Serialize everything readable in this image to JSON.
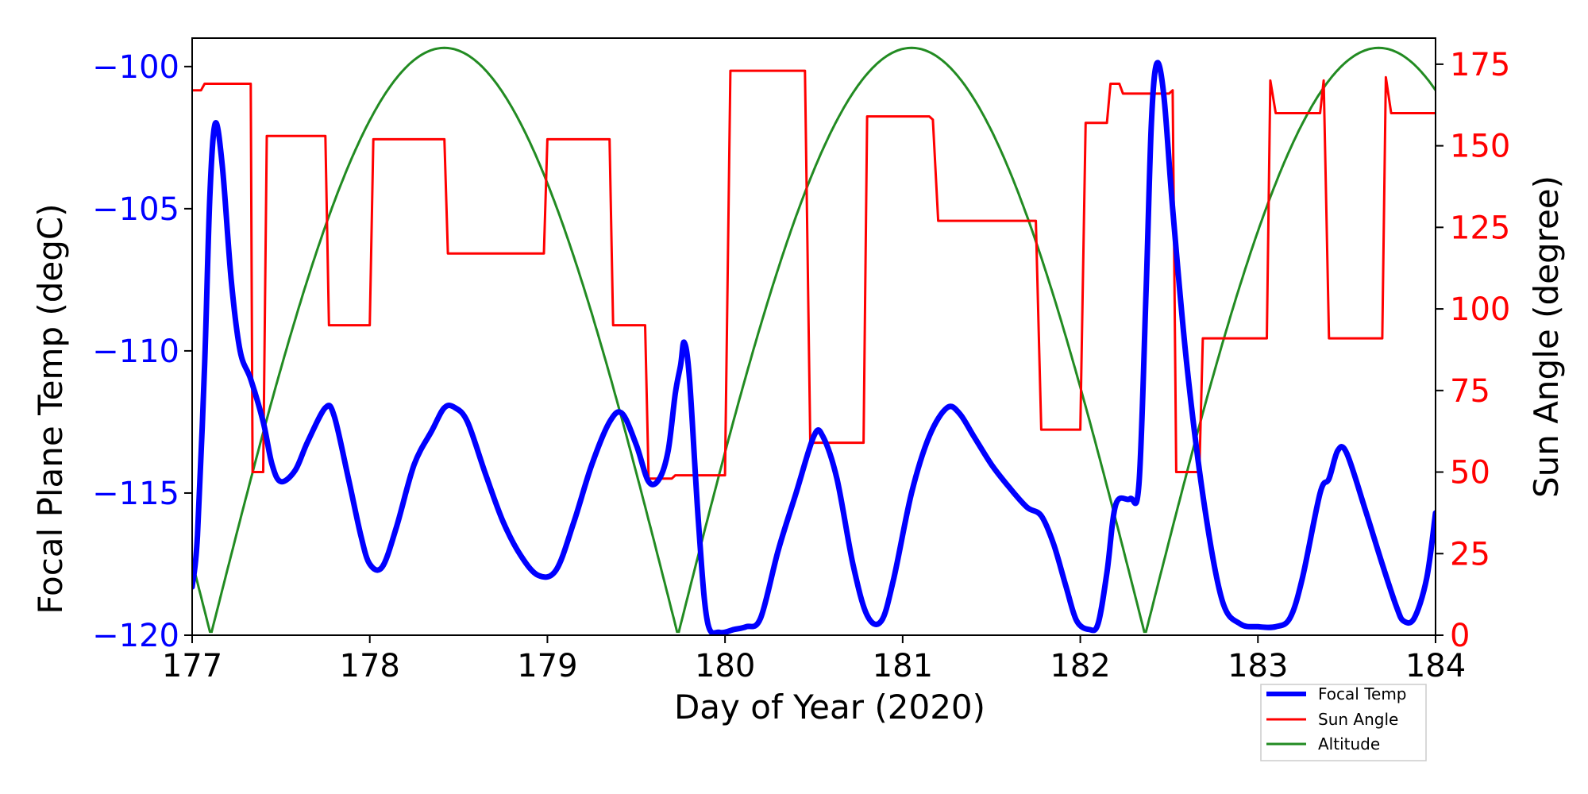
{
  "chart_data": {
    "type": "line",
    "title": "",
    "xlabel": "Day of Year (2020)",
    "ylabel_left": "Focal Plane Temp (degC)",
    "ylabel_right": "Sun Angle (degree)",
    "xlim": [
      177,
      184
    ],
    "ylim_left": [
      -120,
      -99
    ],
    "ylim_right": [
      0,
      183
    ],
    "x_ticks": [
      177,
      178,
      179,
      180,
      181,
      182,
      183,
      184
    ],
    "y_left_ticks": [
      -120,
      -115,
      -110,
      -105,
      -100
    ],
    "y_left_tick_labels": [
      "−120",
      "−115",
      "−110",
      "−105",
      "−100"
    ],
    "y_right_ticks": [
      0,
      25,
      50,
      75,
      100,
      125,
      150,
      175
    ],
    "grid": false,
    "legend_position": "bottom-right",
    "series": [
      {
        "name": "Focal Temp",
        "axis": "left",
        "color": "#0000ff",
        "points": [
          [
            177.0,
            -118.3
          ],
          [
            177.03,
            -116.5
          ],
          [
            177.07,
            -110.5
          ],
          [
            177.1,
            -104.5
          ],
          [
            177.13,
            -102.0
          ],
          [
            177.17,
            -103.5
          ],
          [
            177.22,
            -107.5
          ],
          [
            177.27,
            -110.0
          ],
          [
            177.33,
            -111.0
          ],
          [
            177.4,
            -112.5
          ],
          [
            177.45,
            -114.0
          ],
          [
            177.5,
            -114.6
          ],
          [
            177.58,
            -114.2
          ],
          [
            177.65,
            -113.2
          ],
          [
            177.75,
            -112.0
          ],
          [
            177.8,
            -112.3
          ],
          [
            177.88,
            -114.5
          ],
          [
            177.95,
            -116.5
          ],
          [
            178.0,
            -117.5
          ],
          [
            178.07,
            -117.6
          ],
          [
            178.15,
            -116.2
          ],
          [
            178.25,
            -114.0
          ],
          [
            178.35,
            -112.8
          ],
          [
            178.42,
            -112.0
          ],
          [
            178.48,
            -112.0
          ],
          [
            178.55,
            -112.5
          ],
          [
            178.65,
            -114.3
          ],
          [
            178.75,
            -116.0
          ],
          [
            178.85,
            -117.2
          ],
          [
            178.95,
            -117.9
          ],
          [
            179.05,
            -117.7
          ],
          [
            179.15,
            -116.0
          ],
          [
            179.25,
            -114.0
          ],
          [
            179.35,
            -112.5
          ],
          [
            179.42,
            -112.2
          ],
          [
            179.5,
            -113.3
          ],
          [
            179.57,
            -114.6
          ],
          [
            179.63,
            -114.5
          ],
          [
            179.68,
            -113.5
          ],
          [
            179.72,
            -111.5
          ],
          [
            179.75,
            -110.5
          ],
          [
            179.77,
            -109.7
          ],
          [
            179.8,
            -111.0
          ],
          [
            179.85,
            -116.0
          ],
          [
            179.9,
            -119.5
          ],
          [
            179.97,
            -119.9
          ],
          [
            180.05,
            -119.8
          ],
          [
            180.12,
            -119.7
          ],
          [
            180.2,
            -119.4
          ],
          [
            180.3,
            -117.0
          ],
          [
            180.4,
            -115.0
          ],
          [
            180.5,
            -113.0
          ],
          [
            180.55,
            -113.0
          ],
          [
            180.63,
            -114.5
          ],
          [
            180.72,
            -117.5
          ],
          [
            180.8,
            -119.3
          ],
          [
            180.88,
            -119.5
          ],
          [
            180.95,
            -118.0
          ],
          [
            181.05,
            -115.0
          ],
          [
            181.15,
            -113.0
          ],
          [
            181.25,
            -112.0
          ],
          [
            181.32,
            -112.2
          ],
          [
            181.4,
            -113.0
          ],
          [
            181.5,
            -114.0
          ],
          [
            181.6,
            -114.8
          ],
          [
            181.7,
            -115.5
          ],
          [
            181.78,
            -115.8
          ],
          [
            181.85,
            -116.8
          ],
          [
            181.92,
            -118.3
          ],
          [
            181.98,
            -119.5
          ],
          [
            182.05,
            -119.8
          ],
          [
            182.1,
            -119.6
          ],
          [
            182.15,
            -117.8
          ],
          [
            182.2,
            -115.4
          ],
          [
            182.28,
            -115.2
          ],
          [
            182.33,
            -114.7
          ],
          [
            182.37,
            -108.0
          ],
          [
            182.4,
            -102.0
          ],
          [
            182.43,
            -99.9
          ],
          [
            182.47,
            -101.0
          ],
          [
            182.52,
            -105.0
          ],
          [
            182.6,
            -110.5
          ],
          [
            182.7,
            -115.5
          ],
          [
            182.8,
            -118.8
          ],
          [
            182.9,
            -119.6
          ],
          [
            183.0,
            -119.7
          ],
          [
            183.1,
            -119.7
          ],
          [
            183.18,
            -119.4
          ],
          [
            183.25,
            -118.0
          ],
          [
            183.35,
            -115.0
          ],
          [
            183.4,
            -114.5
          ],
          [
            183.45,
            -113.5
          ],
          [
            183.5,
            -113.6
          ],
          [
            183.6,
            -115.5
          ],
          [
            183.7,
            -117.5
          ],
          [
            183.78,
            -119.0
          ],
          [
            183.82,
            -119.5
          ],
          [
            183.88,
            -119.4
          ],
          [
            183.95,
            -118.0
          ],
          [
            184.0,
            -115.7
          ]
        ]
      },
      {
        "name": "Sun Angle",
        "axis": "right",
        "color": "#ff0000",
        "points": [
          [
            177.0,
            167
          ],
          [
            177.05,
            167
          ],
          [
            177.07,
            169
          ],
          [
            177.33,
            169
          ],
          [
            177.34,
            50
          ],
          [
            177.4,
            50
          ],
          [
            177.42,
            153
          ],
          [
            177.75,
            153
          ],
          [
            177.77,
            95
          ],
          [
            178.0,
            95
          ],
          [
            178.02,
            152
          ],
          [
            178.42,
            152
          ],
          [
            178.44,
            117
          ],
          [
            178.98,
            117
          ],
          [
            179.0,
            152
          ],
          [
            179.35,
            152
          ],
          [
            179.37,
            95
          ],
          [
            179.55,
            95
          ],
          [
            179.57,
            48
          ],
          [
            179.7,
            48
          ],
          [
            179.72,
            49
          ],
          [
            180.0,
            49
          ],
          [
            180.03,
            173
          ],
          [
            180.45,
            173
          ],
          [
            180.48,
            59
          ],
          [
            180.78,
            59
          ],
          [
            180.8,
            159
          ],
          [
            181.15,
            159
          ],
          [
            181.17,
            158
          ],
          [
            181.2,
            127
          ],
          [
            181.75,
            127
          ],
          [
            181.78,
            63
          ],
          [
            182.0,
            63
          ],
          [
            182.03,
            157
          ],
          [
            182.15,
            157
          ],
          [
            182.17,
            169
          ],
          [
            182.22,
            169
          ],
          [
            182.24,
            166
          ],
          [
            182.5,
            166
          ],
          [
            182.52,
            167
          ],
          [
            182.54,
            50
          ],
          [
            182.67,
            50
          ],
          [
            182.69,
            91
          ],
          [
            183.05,
            91
          ],
          [
            183.07,
            170
          ],
          [
            183.1,
            160
          ],
          [
            183.35,
            160
          ],
          [
            183.37,
            170
          ],
          [
            183.4,
            91
          ],
          [
            183.7,
            91
          ],
          [
            183.72,
            171
          ],
          [
            183.75,
            160
          ],
          [
            184.0,
            160
          ]
        ]
      },
      {
        "name": "Altitude",
        "axis": "right",
        "color": "#228b22",
        "shape": "abs-cosine",
        "amplitude": 180,
        "period_days": 2.63,
        "peak_days": [
          178.42,
          181.05,
          183.68
        ],
        "trough_days": [
          177.1,
          179.74,
          182.37
        ]
      }
    ]
  }
}
